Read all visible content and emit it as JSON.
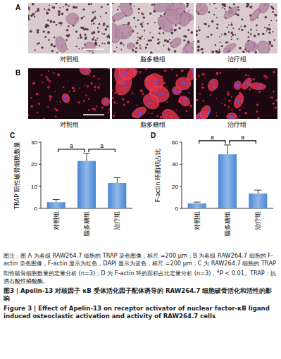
{
  "image_panels": [
    {
      "label": "A",
      "groups": [
        "对照组",
        "脂多糖组",
        "治疗组"
      ]
    },
    {
      "label": "B",
      "groups": [
        "对照组",
        "脂多糖组",
        "治疗组"
      ]
    }
  ],
  "chart_data": [
    {
      "type": "bar",
      "panel_label": "C",
      "y_label": "TRAP 阳性破骨细胞数量",
      "categories": [
        "对照组",
        "脂多糖组",
        "治疗组"
      ],
      "values": [
        2.8,
        21.5,
        11.5
      ],
      "errors": [
        1.2,
        3.4,
        2.4
      ],
      "color": "#4a86d4",
      "ylim": [
        0,
        30
      ],
      "yticks": [
        0,
        10,
        20,
        30
      ],
      "annotations": [
        {
          "from": 0,
          "to": 1,
          "text": "a"
        },
        {
          "from": 1,
          "to": 2,
          "text": "a"
        }
      ]
    },
    {
      "type": "bar",
      "panel_label": "D",
      "y_label": "F-actin 环面积占比",
      "categories": [
        "对照组",
        "脂多糖组",
        "治疗组"
      ],
      "values": [
        4.5,
        49,
        13.5
      ],
      "errors": [
        1.2,
        8.5,
        3
      ],
      "color": "#4a86d4",
      "ylim": [
        0,
        60
      ],
      "yticks": [
        0,
        20,
        40,
        60
      ],
      "annotations": [
        {
          "from": 0,
          "to": 1,
          "text": "a"
        },
        {
          "from": 1,
          "to": 2,
          "text": "a"
        }
      ]
    }
  ],
  "caption": {
    "text": "图注：图 A 为各组 RAW264.7 细胞的 TRAP 染色图像，标尺 =200 μm；B 为各组 RAW264.7 细胞的 F-actin 染色图像，F-actin 显示为红色，DAPI 显示为蓝色，标尺 =200 μm；C 为 RAW264.7 细胞的 TRAP 阳性破骨细胞数量的定量分析 (n=3)；D 为 F-actin 环的面积占比定量分析 (n=3)，",
    "sup": "a",
    "italic": "P",
    "end": " < 0.01。TRAP：抗酒石酸性磷酸酶。"
  },
  "title": "图3 | Apelin-13 对核因子 κB 受体活化因子配体诱导的 RAW264.7 细胞破骨活化和活性的影响",
  "title_en": "Figure 3 | Effect of Apelin-13 on receptor activator of nuclear factor-κB ligand induced osteoclastic activation and activity of RAW264.7 cells"
}
